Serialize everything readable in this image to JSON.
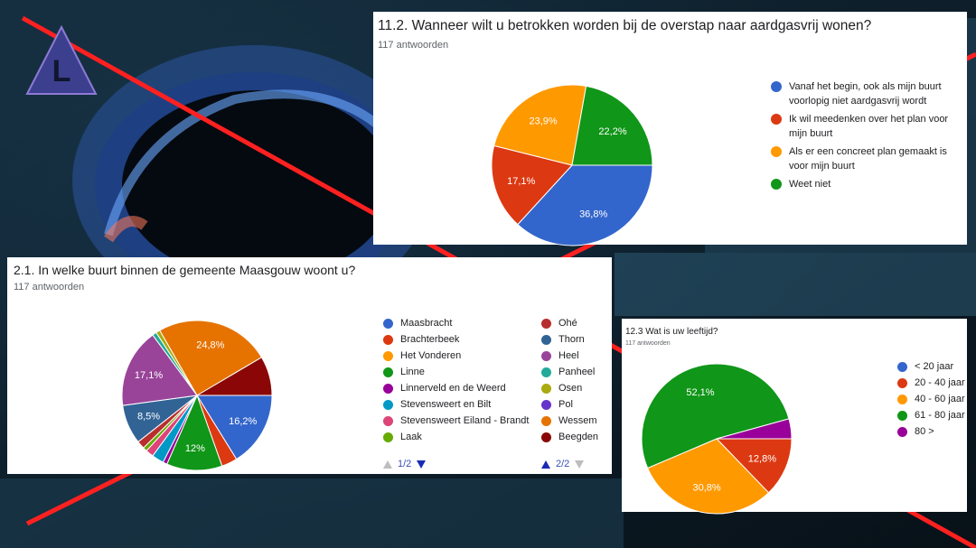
{
  "logo": {
    "letter": "L",
    "colors": {
      "fill": "#3b3f8e",
      "stroke": "#8e7ad6",
      "letter": "#10162e"
    }
  },
  "chart_data": [
    {
      "type": "pie",
      "title": "11.2. Wanneer wilt u betrokken worden bij de overstap naar aardgasvrij wonen?",
      "subtitle": "117 antwoorden",
      "labels": [
        "Vanaf het begin, ook als mijn buurt voorlopig niet aardgasvrij wordt",
        "Ik wil meedenken over het plan voor mijn buurt",
        "Als er een concreet plan gemaakt is voor mijn buurt",
        "Weet niet"
      ],
      "legend_lines": [
        [
          "Vanaf het begin, ook als mijn buurt",
          "voorlopig niet aardgasvrij wordt"
        ],
        [
          "Ik wil meedenken over het plan voor",
          "mijn buurt"
        ],
        [
          "Als er een concreet plan gemaakt is",
          "voor mijn buurt"
        ],
        [
          "Weet niet"
        ]
      ],
      "values": [
        36.8,
        17.1,
        23.9,
        22.2
      ],
      "value_labels": [
        "36,8%",
        "17,1%",
        "23,9%",
        "22,2%"
      ],
      "colors": [
        "#3366cc",
        "#dc3912",
        "#ff9900",
        "#109618"
      ],
      "legend_position": "right"
    },
    {
      "type": "pie",
      "title": "2.1. In welke buurt binnen de gemeente Maasgouw woont u?",
      "subtitle": "117 antwoorden",
      "labels": [
        "Maasbracht",
        "Brachterbeek",
        "Het Vonderen",
        "Linne",
        "Linnerveld en de Weerd",
        "Stevensweert en Bilt",
        "Stevensweert Eiland - Brandt",
        "Laak",
        "Ohé",
        "Thorn",
        "Heel",
        "Panheel",
        "Osen",
        "Pol",
        "Wessem",
        "Beegden"
      ],
      "values": [
        16.2,
        3.4,
        0,
        12.0,
        0.9,
        2.6,
        1.7,
        0.9,
        1.7,
        8.5,
        17.1,
        0.9,
        0.9,
        0,
        24.8,
        8.5
      ],
      "value_labels": [
        "16,2%",
        "",
        "",
        "12%",
        "",
        "",
        "",
        "",
        "",
        "8,5%",
        "17,1%",
        "",
        "",
        "",
        "24,8%",
        ""
      ],
      "colors": [
        "#3366cc",
        "#dc3912",
        "#ff9900",
        "#109618",
        "#990099",
        "#0099c6",
        "#dd4477",
        "#66aa00",
        "#b82e2e",
        "#316395",
        "#994499",
        "#22aa99",
        "#aaaa11",
        "#6633cc",
        "#e67300",
        "#8b0707"
      ],
      "legend_position": "right",
      "pager": [
        "1/2",
        "2/2"
      ]
    },
    {
      "type": "pie",
      "title": "12.3 Wat is uw leeftijd?",
      "subtitle": "117 antwoorden",
      "labels": [
        "< 20 jaar",
        "20 - 40 jaar",
        "40 - 60 jaar",
        "61 - 80 jaar",
        "80 >"
      ],
      "values": [
        0,
        12.8,
        30.8,
        52.1,
        4.3
      ],
      "value_labels": [
        "",
        "12,8%",
        "30,8%",
        "52,1%",
        ""
      ],
      "colors": [
        "#3366cc",
        "#dc3912",
        "#ff9900",
        "#109618",
        "#990099"
      ],
      "legend_position": "right"
    }
  ]
}
